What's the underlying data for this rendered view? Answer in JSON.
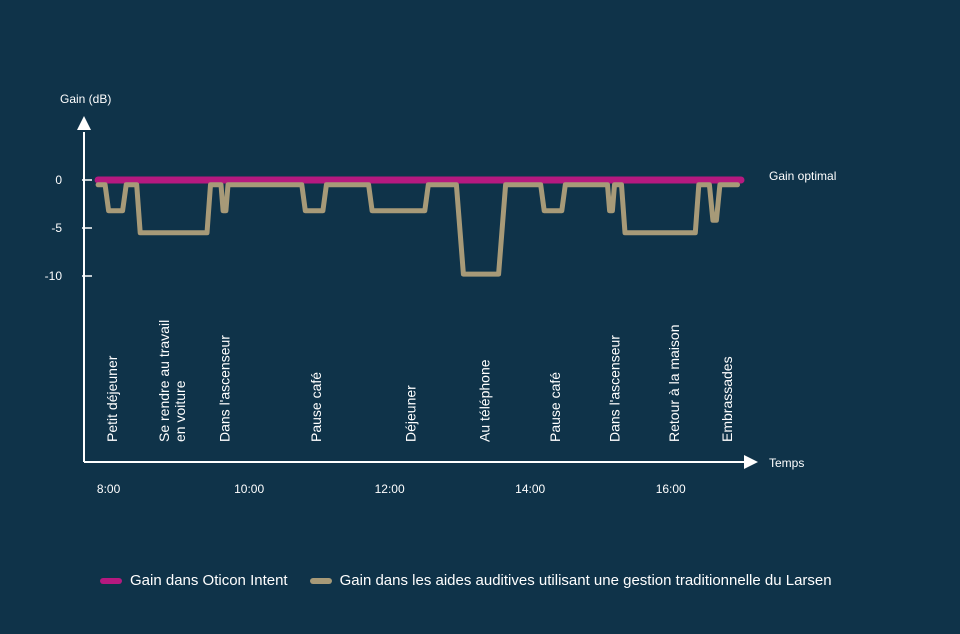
{
  "chart_data": {
    "type": "line",
    "ylabel": "Gain (dB)",
    "xlabel": "Temps",
    "optimal_label": "Gain optimal",
    "y_ticks": [
      {
        "value": 0,
        "label": "0"
      },
      {
        "value": -5,
        "label": "-5"
      },
      {
        "value": -10,
        "label": "-10"
      }
    ],
    "x_ticks": [
      {
        "value": 8,
        "label": "8:00"
      },
      {
        "value": 10,
        "label": "10:00"
      },
      {
        "value": 12,
        "label": "12:00"
      },
      {
        "value": 14,
        "label": "14:00"
      },
      {
        "value": 16,
        "label": "16:00"
      }
    ],
    "events": [
      {
        "x": 8.05,
        "label": "Petit déjeuner"
      },
      {
        "x": 8.9,
        "label": "Se rendre au travail\nen voiture"
      },
      {
        "x": 9.65,
        "label": "Dans l'ascenseur"
      },
      {
        "x": 10.95,
        "label": "Pause café"
      },
      {
        "x": 12.3,
        "label": "Déjeuner"
      },
      {
        "x": 13.35,
        "label": "Au téléphone"
      },
      {
        "x": 14.35,
        "label": "Pause café"
      },
      {
        "x": 15.2,
        "label": "Dans l'ascenseur"
      },
      {
        "x": 16.05,
        "label": "Retour à la maison"
      },
      {
        "x": 16.8,
        "label": "Embrassades"
      }
    ],
    "series": [
      {
        "name": "Gain dans Oticon Intent",
        "color": "#b5197f",
        "points": [
          [
            7.85,
            0
          ],
          [
            17.0,
            0
          ]
        ]
      },
      {
        "name": "Gain dans les aides auditives utilisant une gestion traditionnelle du Larsen",
        "color": "#a79a78",
        "points": [
          [
            7.85,
            -0.5
          ],
          [
            7.95,
            -0.5
          ],
          [
            8.0,
            -3.2
          ],
          [
            8.2,
            -3.2
          ],
          [
            8.25,
            -0.5
          ],
          [
            8.4,
            -0.5
          ],
          [
            8.45,
            -5.5
          ],
          [
            9.4,
            -5.5
          ],
          [
            9.45,
            -0.5
          ],
          [
            9.6,
            -0.5
          ],
          [
            9.63,
            -3.2
          ],
          [
            9.67,
            -3.2
          ],
          [
            9.7,
            -0.5
          ],
          [
            10.75,
            -0.5
          ],
          [
            10.8,
            -3.2
          ],
          [
            11.05,
            -3.2
          ],
          [
            11.1,
            -0.5
          ],
          [
            11.7,
            -0.5
          ],
          [
            11.75,
            -3.2
          ],
          [
            12.5,
            -3.2
          ],
          [
            12.55,
            -0.5
          ],
          [
            12.95,
            -0.5
          ],
          [
            13.05,
            -9.8
          ],
          [
            13.55,
            -9.8
          ],
          [
            13.65,
            -0.5
          ],
          [
            14.15,
            -0.5
          ],
          [
            14.2,
            -3.2
          ],
          [
            14.45,
            -3.2
          ],
          [
            14.5,
            -0.5
          ],
          [
            15.1,
            -0.5
          ],
          [
            15.13,
            -3.2
          ],
          [
            15.17,
            -3.2
          ],
          [
            15.2,
            -0.5
          ],
          [
            15.3,
            -0.5
          ],
          [
            15.35,
            -5.5
          ],
          [
            16.35,
            -5.5
          ],
          [
            16.4,
            -0.5
          ],
          [
            16.55,
            -0.5
          ],
          [
            16.6,
            -4.2
          ],
          [
            16.65,
            -4.2
          ],
          [
            16.7,
            -0.5
          ],
          [
            16.95,
            -0.5
          ]
        ]
      }
    ],
    "xlim": [
      7.65,
      17.1
    ],
    "ylim": [
      -10.8,
      2.5
    ]
  },
  "legend": {
    "items": [
      {
        "label": "Gain dans Oticon Intent",
        "color": "#b5197f"
      },
      {
        "label": "Gain dans les aides auditives utilisant une gestion traditionnelle du Larsen",
        "color": "#a79a78"
      }
    ]
  }
}
